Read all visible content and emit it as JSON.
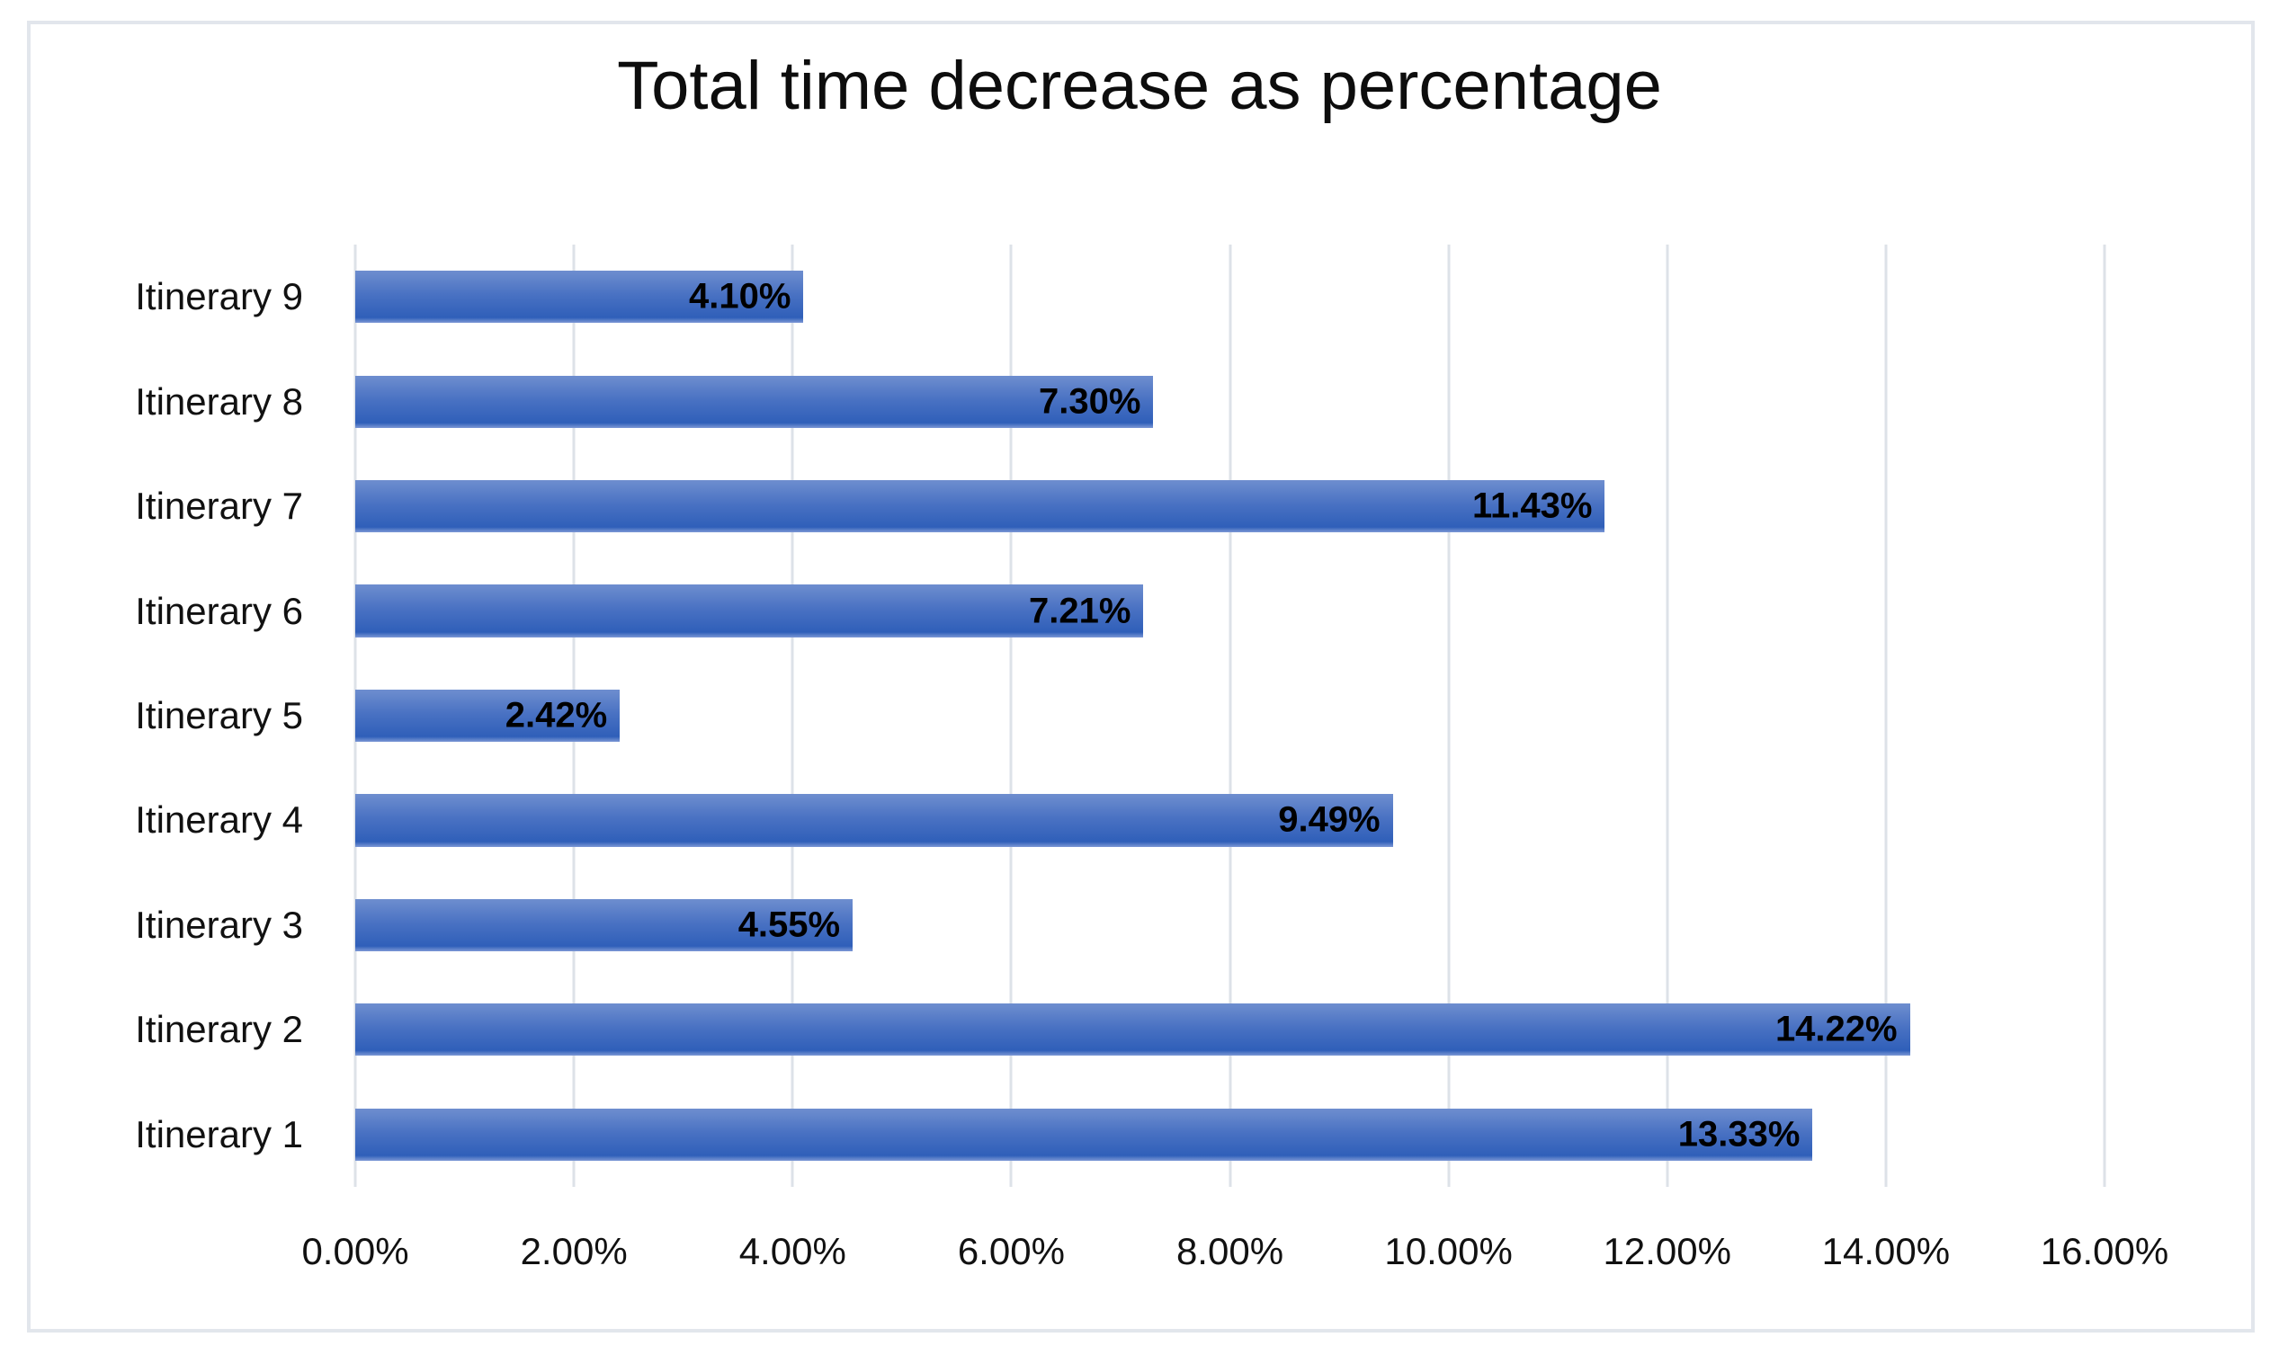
{
  "chart": {
    "frame_border_color": "#e2e6ec",
    "background_color": "#ffffff",
    "gridline_color": "#dde2e8",
    "bar_color_top": "#6e8ecf",
    "bar_color_bottom": "#2f5fb9",
    "title_color": "#0d0d0d",
    "label_color": "#111111",
    "data_label_color": "#000000"
  },
  "chart_data": {
    "type": "bar",
    "orientation": "horizontal",
    "title": "Total time decrease as percentage",
    "xlabel": "",
    "ylabel": "",
    "legend": false,
    "gridlines": true,
    "data_label_position": "inside-end-bold",
    "x_axis": {
      "min": 0,
      "max": 16,
      "tick_step": 2,
      "tick_labels": [
        "0.00%",
        "2.00%",
        "4.00%",
        "6.00%",
        "8.00%",
        "10.00%",
        "12.00%",
        "14.00%",
        "16.00%"
      ]
    },
    "bars_top_to_bottom": [
      {
        "category": "Itinerary 9",
        "value": 4.1,
        "label": "4.10%"
      },
      {
        "category": "Itinerary 8",
        "value": 7.3,
        "label": "7.30%"
      },
      {
        "category": "Itinerary 7",
        "value": 11.43,
        "label": "11.43%"
      },
      {
        "category": "Itinerary 6",
        "value": 7.21,
        "label": "7.21%"
      },
      {
        "category": "Itinerary 5",
        "value": 2.42,
        "label": "2.42%"
      },
      {
        "category": "Itinerary 4",
        "value": 9.49,
        "label": "9.49%"
      },
      {
        "category": "Itinerary 3",
        "value": 4.55,
        "label": "4.55%"
      },
      {
        "category": "Itinerary 2",
        "value": 14.22,
        "label": "14.22%"
      },
      {
        "category": "Itinerary 1",
        "value": 13.33,
        "label": "13.33%"
      }
    ]
  }
}
